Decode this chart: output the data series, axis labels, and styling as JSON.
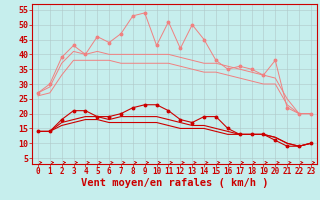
{
  "background_color": "#c6eeed",
  "grid_color": "#b0c8c8",
  "xlabel": "Vent moyen/en rafales ( km/h )",
  "xlabel_color": "#cc0000",
  "xlabel_fontsize": 7.5,
  "xtick_color": "#cc0000",
  "ytick_color": "#cc0000",
  "ytick_fontsize": 6,
  "xtick_fontsize": 5.5,
  "ylim": [
    3,
    57
  ],
  "xlim": [
    -0.5,
    23.5
  ],
  "yticks": [
    5,
    10,
    15,
    20,
    25,
    30,
    35,
    40,
    45,
    50,
    55
  ],
  "xticks": [
    0,
    1,
    2,
    3,
    4,
    5,
    6,
    7,
    8,
    9,
    10,
    11,
    12,
    13,
    14,
    15,
    16,
    17,
    18,
    19,
    20,
    21,
    22,
    23
  ],
  "x": [
    0,
    1,
    2,
    3,
    4,
    5,
    6,
    7,
    8,
    9,
    10,
    11,
    12,
    13,
    14,
    15,
    16,
    17,
    18,
    19,
    20,
    21,
    22,
    23
  ],
  "line_light_pink_jagged": [
    27,
    30,
    39,
    43,
    40,
    46,
    44,
    47,
    53,
    54,
    43,
    51,
    42,
    50,
    45,
    38,
    35,
    36,
    35,
    33,
    38,
    22,
    20,
    20
  ],
  "line_light_pink_smooth1": [
    27,
    29,
    37,
    41,
    40,
    41,
    40,
    40,
    40,
    40,
    40,
    40,
    39,
    38,
    37,
    37,
    36,
    35,
    34,
    33,
    32,
    25,
    20,
    20
  ],
  "line_light_pink_smooth2": [
    26,
    27,
    33,
    38,
    38,
    38,
    38,
    37,
    37,
    37,
    37,
    37,
    36,
    35,
    34,
    34,
    33,
    32,
    31,
    30,
    30,
    23,
    20,
    20
  ],
  "line_dark_red_jagged": [
    14,
    14,
    18,
    21,
    21,
    19,
    19,
    20,
    22,
    23,
    23,
    21,
    18,
    17,
    19,
    19,
    15,
    13,
    13,
    13,
    11,
    9,
    9,
    10
  ],
  "line_dark_red_smooth1": [
    14,
    14,
    17,
    18,
    19,
    19,
    18,
    19,
    19,
    19,
    19,
    18,
    17,
    16,
    16,
    15,
    14,
    13,
    13,
    13,
    12,
    10,
    9,
    10
  ],
  "line_dark_red_smooth2": [
    14,
    14,
    16,
    17,
    18,
    18,
    17,
    17,
    17,
    17,
    17,
    16,
    15,
    15,
    15,
    14,
    13,
    13,
    13,
    13,
    12,
    10,
    9,
    10
  ],
  "color_light_pink": "#f08080",
  "color_dark_red": "#cc0000",
  "color_arrow": "#cc0000",
  "spine_color": "#cc0000"
}
